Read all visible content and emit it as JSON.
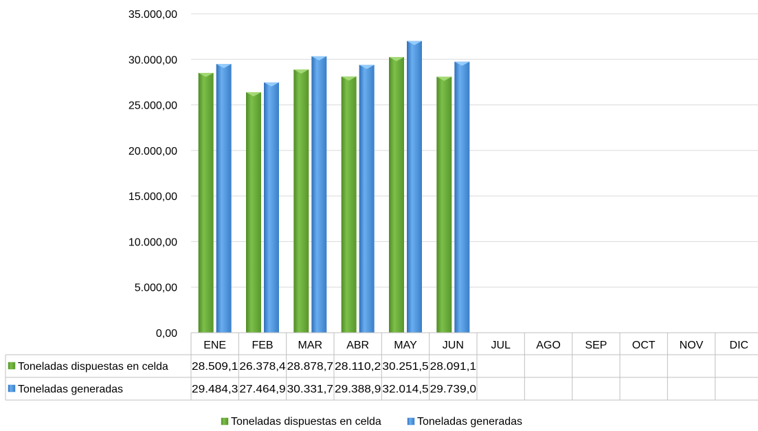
{
  "chart_data": {
    "type": "bar",
    "categories": [
      "ENE",
      "FEB",
      "MAR",
      "ABR",
      "MAY",
      "JUN",
      "JUL",
      "AGO",
      "SEP",
      "OCT",
      "NOV",
      "DIC"
    ],
    "series": [
      {
        "name": "Toneladas dispuestas en celda",
        "values": [
          28509.1,
          26378.4,
          28878.7,
          28110.2,
          30251.5,
          28091.1,
          null,
          null,
          null,
          null,
          null,
          null
        ],
        "table_labels": [
          "28.509,1",
          "26.378,4",
          "28.878,7",
          "28.110,2",
          "30.251,5",
          "28.091,1",
          "",
          "",
          "",
          "",
          "",
          ""
        ],
        "color": "#6aaa3a"
      },
      {
        "name": "Toneladas generadas",
        "values": [
          29484.3,
          27464.9,
          30331.7,
          29388.9,
          32014.5,
          29739.0,
          null,
          null,
          null,
          null,
          null,
          null
        ],
        "table_labels": [
          "29.484,3",
          "27.464,9",
          "30.331,7",
          "29.388,9",
          "32.014,5",
          "29.739,0",
          "",
          "",
          "",
          "",
          "",
          ""
        ],
        "color": "#4a8fd6"
      }
    ],
    "ylim": [
      0,
      35000
    ],
    "yticks": [
      0,
      5000,
      10000,
      15000,
      20000,
      25000,
      30000,
      35000
    ],
    "ytick_labels": [
      "0,00",
      "5.000,00",
      "10.000,00",
      "15.000,00",
      "20.000,00",
      "25.000,00",
      "30.000,00",
      "35.000,00"
    ],
    "grid": true,
    "legend": "bottom",
    "data_table": true
  }
}
